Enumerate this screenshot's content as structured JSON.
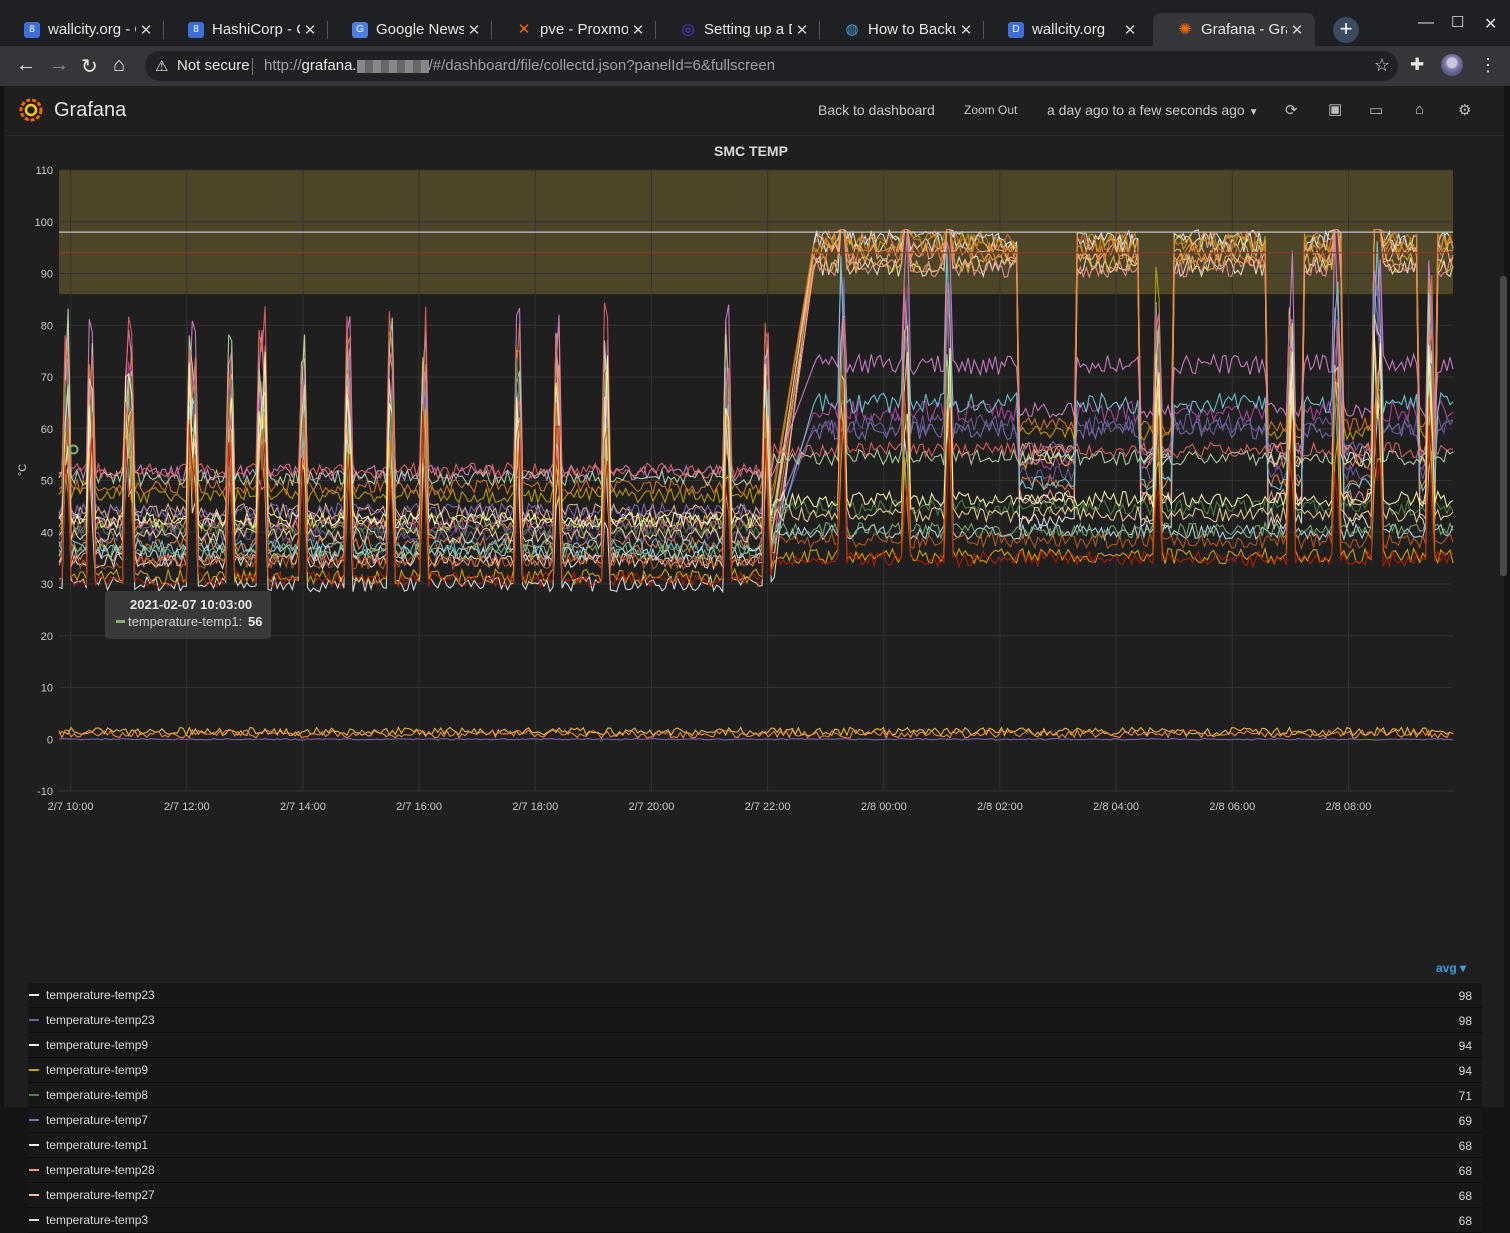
{
  "browser": {
    "tabs": [
      {
        "title": "wallcity.org - C",
        "icon": "blue-square-icon",
        "color": "#3d6fd6"
      },
      {
        "title": "HashiCorp - Ca",
        "icon": "blue-square-icon",
        "color": "#3d6fd6"
      },
      {
        "title": "Google News",
        "icon": "google-news-icon",
        "color": "#4a7ee0"
      },
      {
        "title": "pve - Proxmox",
        "icon": "proxmox-icon",
        "color": "#e57000"
      },
      {
        "title": "Setting up a D",
        "icon": "circle-icon",
        "color": "#5b3ee0"
      },
      {
        "title": "How to Backup",
        "icon": "globe-icon",
        "color": "#4aa0e0"
      },
      {
        "title": "wallcity.org",
        "icon": "dsm-icon",
        "color": "#3d6fd6"
      },
      {
        "title": "Grafana - Grafa",
        "icon": "grafana-icon",
        "color": "#f46800",
        "active": true
      }
    ],
    "security_label": "Not secure",
    "url_prefix": "http://",
    "url_host": "grafana.",
    "url_path": "/#/dashboard/file/collectd.json?panelId=6&fullscreen"
  },
  "grafana": {
    "brand": "Grafana",
    "back_label": "Back to dashboard",
    "zoom_label": "Zoom Out",
    "time_range": "a day ago to a few seconds ago"
  },
  "panel": {
    "title": "SMC TEMP",
    "tooltip": {
      "time": "2021-02-07 10:03:00",
      "series": "temperature-temp1:",
      "value": "56"
    },
    "legend_header": "avg"
  },
  "chart_data": {
    "type": "line",
    "title": "SMC TEMP",
    "ylabel": "°C",
    "ylim": [
      -10,
      110
    ],
    "y_ticks": [
      "110",
      "100",
      "90",
      "80",
      "70",
      "60",
      "50",
      "40",
      "30",
      "20",
      "10",
      "0",
      "-10"
    ],
    "x_ticks": [
      "2/7 10:00",
      "2/7 12:00",
      "2/7 14:00",
      "2/7 16:00",
      "2/7 18:00",
      "2/7 20:00",
      "2/7 22:00",
      "2/8 00:00",
      "2/8 02:00",
      "2/8 04:00",
      "2/8 06:00",
      "2/8 08:00"
    ],
    "x_start": "2/7 09:48",
    "x_end": "2/8 09:48",
    "threshold_band": [
      86,
      110
    ],
    "threshold_lines": [
      98,
      94
    ],
    "grid": true,
    "series_note": "Many temperature series; avg values from legend.",
    "legend": [
      {
        "name": "temperature-temp23",
        "color": "#e8e8e8",
        "avg": "98"
      },
      {
        "name": "temperature-temp23",
        "color": "#705da0",
        "avg": "98"
      },
      {
        "name": "temperature-temp9",
        "color": "#f4f4f4",
        "avg": "94"
      },
      {
        "name": "temperature-temp9",
        "color": "#cca300",
        "avg": "94"
      },
      {
        "name": "temperature-temp8",
        "color": "#508642",
        "avg": "71"
      },
      {
        "name": "temperature-temp7",
        "color": "#806eb7",
        "avg": "69"
      },
      {
        "name": "temperature-temp1",
        "color": "#f2f2f2",
        "avg": "68"
      },
      {
        "name": "temperature-temp28",
        "color": "#f29191",
        "avg": "68"
      },
      {
        "name": "temperature-temp27",
        "color": "#f9ba8f",
        "avg": "68"
      },
      {
        "name": "temperature-temp3",
        "color": "#dedede",
        "avg": "68"
      }
    ]
  }
}
